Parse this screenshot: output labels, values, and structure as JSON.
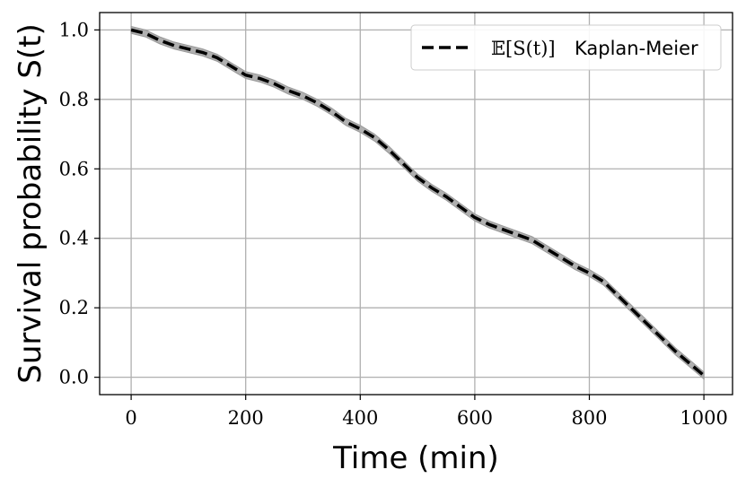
{
  "chart_data": {
    "type": "line",
    "xlabel": "Time (min)",
    "ylabel": "Survival probability S(t)",
    "xlim": [
      -55,
      1050
    ],
    "ylim": [
      -0.05,
      1.05
    ],
    "xticks": [
      0,
      200,
      400,
      600,
      800,
      1000
    ],
    "xtick_labels": [
      "0",
      "200",
      "400",
      "600",
      "800",
      "1000"
    ],
    "yticks": [
      0.0,
      0.2,
      0.4,
      0.6,
      0.8,
      1.0
    ],
    "ytick_labels": [
      "0.0",
      "0.2",
      "0.4",
      "0.6",
      "0.8",
      "1.0"
    ],
    "grid": true,
    "legend_position": "top-right",
    "legend": {
      "math": "𝔼[S(t)]",
      "text": "Kaplan-Meier"
    },
    "band_color": "#b0b0b0",
    "line_color": "#000000",
    "series": [
      {
        "name": "𝔼[S(t)] Kaplan-Meier",
        "style": "dashed",
        "band_halfwidth": 0.01,
        "x": [
          0,
          25,
          50,
          75,
          100,
          125,
          150,
          175,
          200,
          225,
          250,
          275,
          300,
          325,
          350,
          375,
          400,
          425,
          450,
          475,
          500,
          525,
          550,
          575,
          600,
          625,
          650,
          675,
          700,
          725,
          750,
          775,
          800,
          825,
          850,
          875,
          900,
          925,
          950,
          975,
          1000
        ],
        "y": [
          1.0,
          0.99,
          0.97,
          0.955,
          0.945,
          0.935,
          0.92,
          0.895,
          0.87,
          0.86,
          0.845,
          0.825,
          0.81,
          0.79,
          0.765,
          0.735,
          0.715,
          0.69,
          0.655,
          0.615,
          0.575,
          0.545,
          0.52,
          0.49,
          0.46,
          0.44,
          0.425,
          0.41,
          0.395,
          0.37,
          0.345,
          0.32,
          0.3,
          0.275,
          0.235,
          0.195,
          0.155,
          0.115,
          0.075,
          0.04,
          0.005
        ]
      }
    ]
  }
}
